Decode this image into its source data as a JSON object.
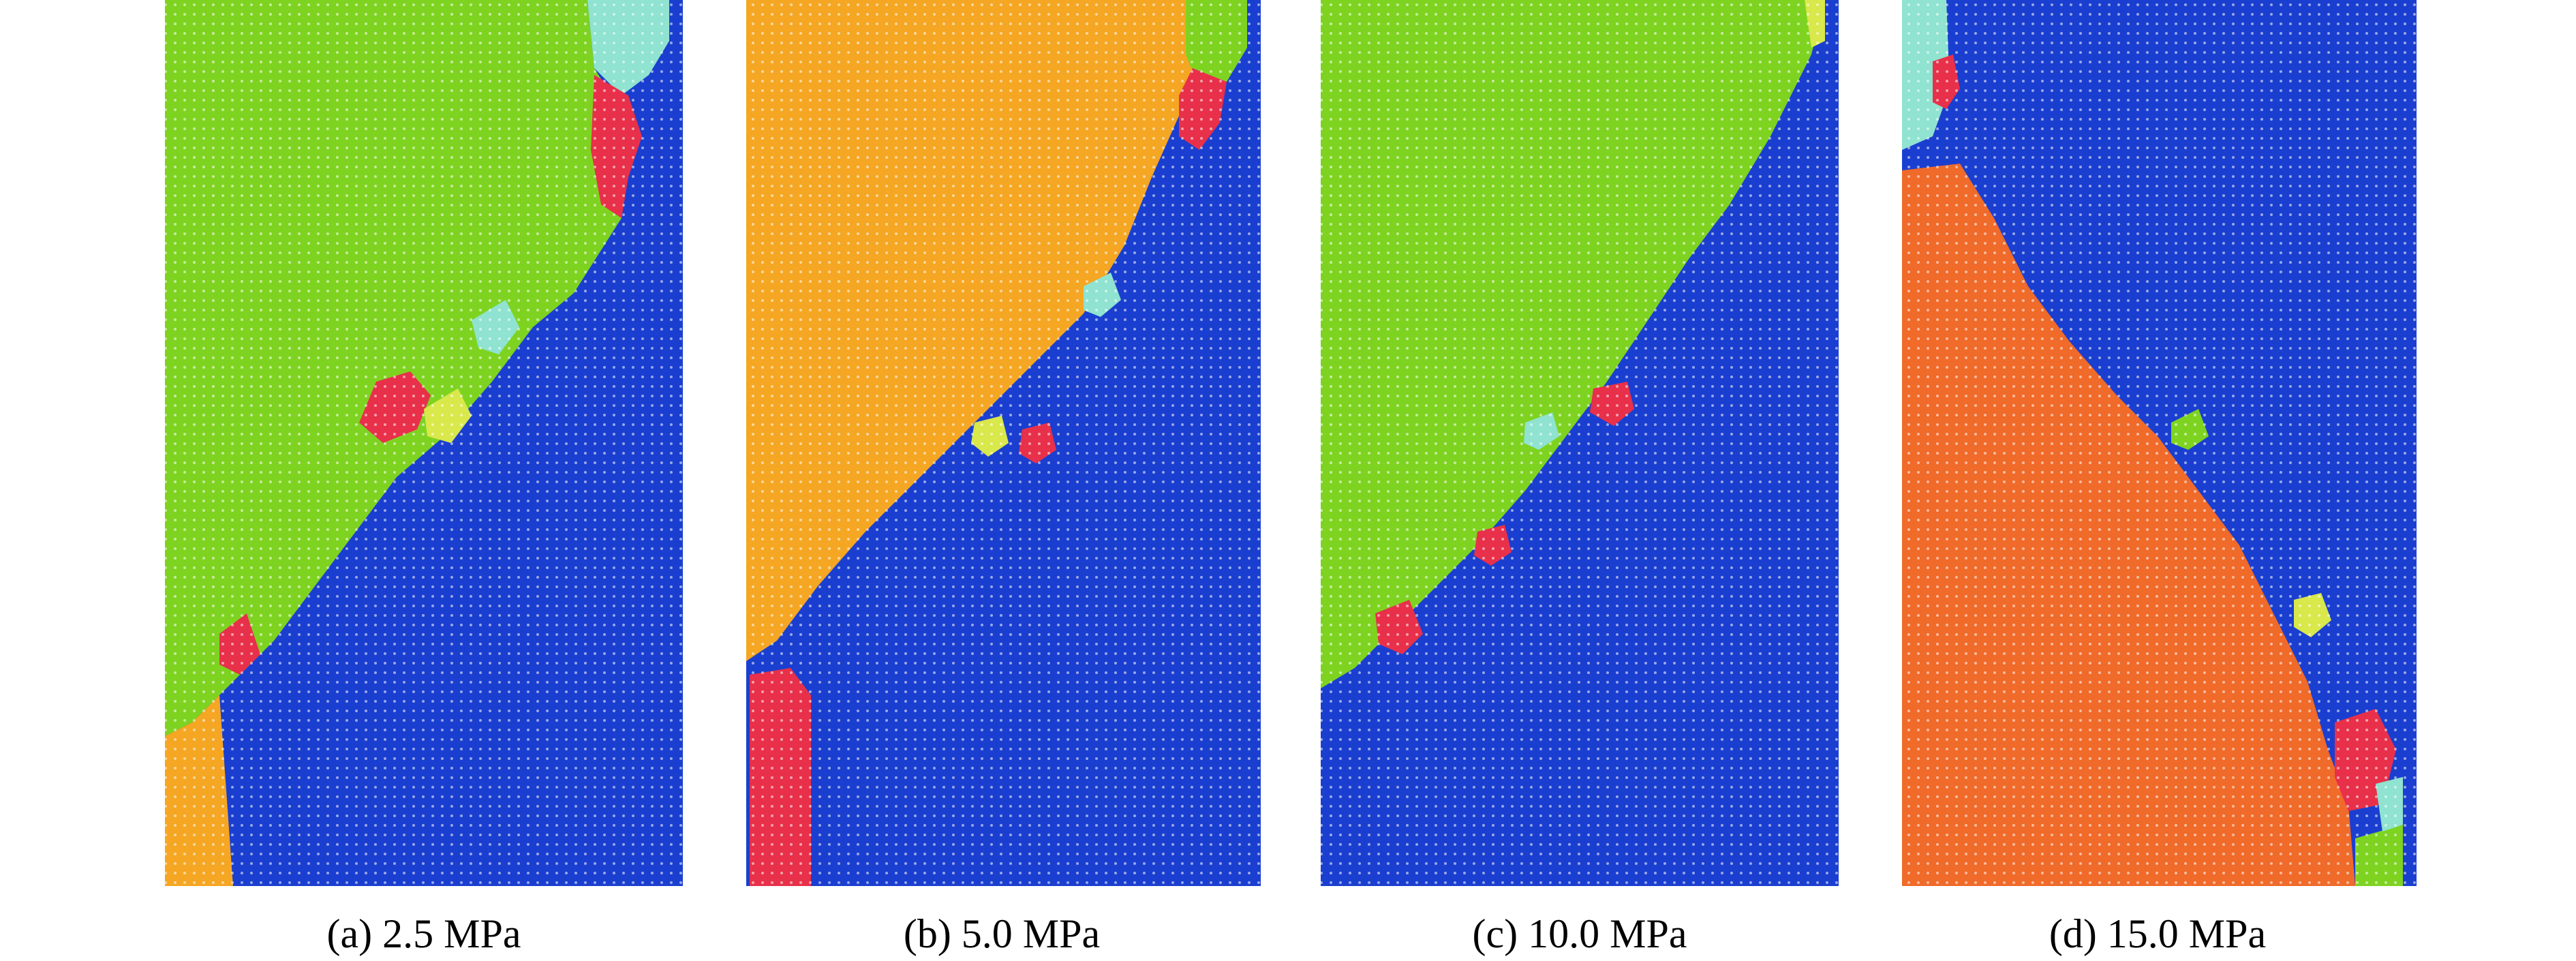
{
  "colors": {
    "green": "#7ed321",
    "blue": "#1a3fd0",
    "orange": "#f5a623",
    "red": "#e8304a",
    "cyan": "#8fe3d0",
    "yellow": "#d9e84a",
    "dark_orange": "#f06a2a"
  },
  "panels": [
    {
      "caption": "(a) 2.5 MPa"
    },
    {
      "caption": "(b) 5.0 MPa"
    },
    {
      "caption": "(c) 10.0 MPa"
    },
    {
      "caption": "(d) 15.0 MPa"
    }
  ]
}
